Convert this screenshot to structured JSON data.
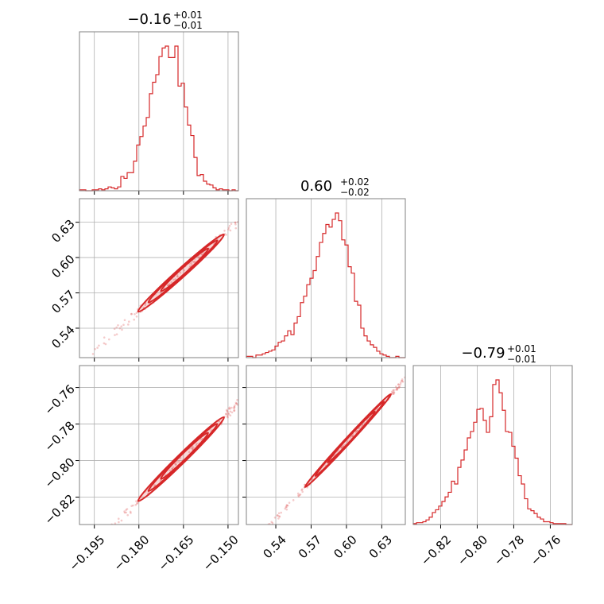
{
  "chart_data": {
    "type": "corner",
    "color": "#d62728",
    "grid": true,
    "parameters": [
      {
        "id": "p0",
        "range": [
          -0.2,
          -0.1465
        ],
        "ticks": [
          -0.195,
          -0.18,
          -0.165,
          -0.15
        ],
        "tick_labels": [
          "−0.195",
          "−0.180",
          "−0.165",
          "−0.150"
        ],
        "title": {
          "value": "−0.16",
          "plus": "+0.01",
          "minus": "−0.01"
        }
      },
      {
        "id": "p1",
        "range": [
          0.515,
          0.65
        ],
        "ticks": [
          0.54,
          0.57,
          0.6,
          0.63
        ],
        "tick_labels": [
          "0.54",
          "0.57",
          "0.60",
          "0.63"
        ],
        "title": {
          "value": "0.60",
          "plus": "+0.02",
          "minus": "−0.02"
        }
      },
      {
        "id": "p2",
        "range": [
          -0.835,
          -0.748
        ],
        "ticks": [
          -0.82,
          -0.8,
          -0.78,
          -0.76
        ],
        "tick_labels": [
          "−0.82",
          "−0.80",
          "−0.78",
          "−0.76"
        ],
        "title": {
          "value": "−0.79",
          "plus": "+0.01",
          "minus": "−0.01"
        }
      }
    ],
    "histograms": [
      {
        "param": "p0",
        "bins": 50,
        "counts": [
          1,
          1,
          0,
          0,
          1,
          1,
          2,
          1,
          2,
          4,
          3,
          2,
          4,
          15,
          13,
          19,
          19,
          31,
          48,
          57,
          68,
          77,
          102,
          114,
          122,
          141,
          150,
          152,
          140,
          140,
          152,
          110,
          113,
          88,
          69,
          58,
          35,
          16,
          17,
          10,
          7,
          6,
          3,
          1,
          2,
          1,
          1,
          0,
          1,
          0
        ]
      },
      {
        "param": "p1",
        "bins": 50,
        "counts": [
          1,
          1,
          0,
          2,
          2,
          3,
          4,
          5,
          6,
          9,
          12,
          13,
          17,
          21,
          18,
          27,
          32,
          43,
          48,
          57,
          62,
          68,
          79,
          90,
          97,
          104,
          102,
          108,
          113,
          107,
          92,
          88,
          71,
          66,
          44,
          41,
          23,
          17,
          13,
          10,
          8,
          5,
          3,
          2,
          1,
          0,
          0,
          1,
          0,
          0
        ]
      },
      {
        "param": "p2",
        "bins": 50,
        "counts": [
          1,
          2,
          2,
          3,
          5,
          8,
          13,
          16,
          20,
          25,
          30,
          35,
          47,
          44,
          62,
          70,
          81,
          94,
          101,
          111,
          125,
          126,
          113,
          100,
          117,
          152,
          157,
          143,
          124,
          101,
          100,
          85,
          72,
          53,
          44,
          28,
          17,
          15,
          12,
          8,
          6,
          3,
          3,
          2,
          1,
          1,
          1,
          1,
          0,
          0
        ]
      }
    ],
    "correlations": [
      {
        "x": "p0",
        "y": "p1",
        "relation": "linear",
        "slope": 2.27,
        "intercept": 0.9632,
        "spread": 0.004
      },
      {
        "x": "p0",
        "y": "p2",
        "relation": "linear",
        "slope": 1.59,
        "intercept": -0.5356,
        "spread": 0.0025
      },
      {
        "x": "p1",
        "y": "p2",
        "relation": "linear",
        "slope": 0.698,
        "intercept": -1.2088,
        "spread": 0.0015
      }
    ]
  }
}
